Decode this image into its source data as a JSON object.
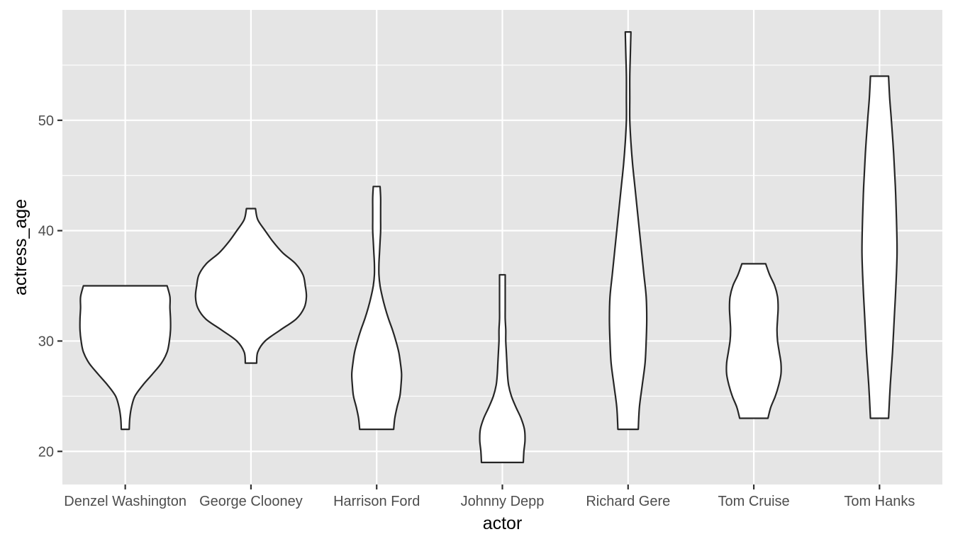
{
  "chart_data": {
    "type": "violin",
    "title": "",
    "xlabel": "actor",
    "ylabel": "actress_age",
    "ylim": [
      17,
      60
    ],
    "y_ticks": [
      20,
      30,
      40,
      50
    ],
    "y_tick_labels": [
      "20",
      "30",
      "40",
      "50"
    ],
    "grid": true,
    "legend": "none",
    "colors": {
      "panel_background": "#e5e5e5",
      "grid_line": "#ffffff",
      "violin_fill": "#ffffff",
      "violin_outline": "#262626",
      "tick_text": "#4d4d4d",
      "axis_title": "#000000"
    },
    "categories": [
      "Denzel Washington",
      "George Clooney",
      "Harrison Ford",
      "Johnny Depp",
      "Richard Gere",
      "Tom Cruise",
      "Tom Hanks"
    ],
    "series": [
      {
        "category": "Denzel Washington",
        "min": 22,
        "max": 35,
        "density": [
          [
            22,
            0.07
          ],
          [
            23,
            0.08
          ],
          [
            24,
            0.11
          ],
          [
            25,
            0.17
          ],
          [
            26,
            0.31
          ],
          [
            27,
            0.48
          ],
          [
            28,
            0.64
          ],
          [
            29,
            0.74
          ],
          [
            30,
            0.78
          ],
          [
            31,
            0.8
          ],
          [
            32,
            0.8
          ],
          [
            33,
            0.79
          ],
          [
            34,
            0.79
          ],
          [
            35,
            0.74
          ]
        ]
      },
      {
        "category": "George Clooney",
        "min": 28,
        "max": 42,
        "density": [
          [
            28,
            0.1
          ],
          [
            29,
            0.12
          ],
          [
            30,
            0.25
          ],
          [
            31,
            0.52
          ],
          [
            32,
            0.8
          ],
          [
            33,
            0.94
          ],
          [
            34,
            0.98
          ],
          [
            35,
            0.96
          ],
          [
            36,
            0.92
          ],
          [
            37,
            0.79
          ],
          [
            38,
            0.56
          ],
          [
            39,
            0.39
          ],
          [
            40,
            0.25
          ],
          [
            41,
            0.12
          ],
          [
            42,
            0.08
          ]
        ]
      },
      {
        "category": "Harrison Ford",
        "min": 22,
        "max": 44,
        "density": [
          [
            22,
            0.3
          ],
          [
            23,
            0.32
          ],
          [
            24,
            0.36
          ],
          [
            25,
            0.41
          ],
          [
            26,
            0.43
          ],
          [
            27,
            0.44
          ],
          [
            28,
            0.42
          ],
          [
            29,
            0.39
          ],
          [
            30,
            0.34
          ],
          [
            31,
            0.28
          ],
          [
            32,
            0.21
          ],
          [
            33,
            0.15
          ],
          [
            34,
            0.1
          ],
          [
            35,
            0.06
          ],
          [
            36,
            0.04
          ],
          [
            37,
            0.04
          ],
          [
            38,
            0.05
          ],
          [
            39,
            0.06
          ],
          [
            40,
            0.07
          ],
          [
            41,
            0.07
          ],
          [
            42,
            0.07
          ],
          [
            43,
            0.07
          ],
          [
            44,
            0.06
          ]
        ]
      },
      {
        "category": "Johnny Depp",
        "min": 19,
        "max": 36,
        "density": [
          [
            19,
            0.37
          ],
          [
            20,
            0.38
          ],
          [
            21,
            0.4
          ],
          [
            22,
            0.39
          ],
          [
            23,
            0.33
          ],
          [
            24,
            0.24
          ],
          [
            25,
            0.16
          ],
          [
            26,
            0.11
          ],
          [
            27,
            0.09
          ],
          [
            28,
            0.08
          ],
          [
            29,
            0.07
          ],
          [
            30,
            0.06
          ],
          [
            31,
            0.06
          ],
          [
            32,
            0.05
          ],
          [
            33,
            0.05
          ],
          [
            34,
            0.05
          ],
          [
            35,
            0.05
          ],
          [
            36,
            0.05
          ]
        ]
      },
      {
        "category": "Richard Gere",
        "min": 22,
        "max": 58,
        "density": [
          [
            22,
            0.18
          ],
          [
            24,
            0.2
          ],
          [
            26,
            0.25
          ],
          [
            28,
            0.3
          ],
          [
            30,
            0.32
          ],
          [
            32,
            0.33
          ],
          [
            34,
            0.32
          ],
          [
            36,
            0.28
          ],
          [
            38,
            0.24
          ],
          [
            40,
            0.2
          ],
          [
            42,
            0.16
          ],
          [
            44,
            0.12
          ],
          [
            46,
            0.08
          ],
          [
            48,
            0.05
          ],
          [
            50,
            0.03
          ],
          [
            52,
            0.03
          ],
          [
            54,
            0.03
          ],
          [
            56,
            0.04
          ],
          [
            58,
            0.05
          ]
        ]
      },
      {
        "category": "Tom Cruise",
        "min": 23,
        "max": 37,
        "density": [
          [
            23,
            0.25
          ],
          [
            24,
            0.3
          ],
          [
            25,
            0.38
          ],
          [
            26,
            0.44
          ],
          [
            27,
            0.48
          ],
          [
            28,
            0.48
          ],
          [
            29,
            0.45
          ],
          [
            30,
            0.42
          ],
          [
            31,
            0.41
          ],
          [
            32,
            0.42
          ],
          [
            33,
            0.43
          ],
          [
            34,
            0.42
          ],
          [
            35,
            0.37
          ],
          [
            36,
            0.28
          ],
          [
            37,
            0.21
          ]
        ]
      },
      {
        "category": "Tom Hanks",
        "min": 23,
        "max": 54,
        "density": [
          [
            23,
            0.16
          ],
          [
            26,
            0.19
          ],
          [
            29,
            0.23
          ],
          [
            32,
            0.26
          ],
          [
            35,
            0.29
          ],
          [
            38,
            0.31
          ],
          [
            41,
            0.3
          ],
          [
            44,
            0.28
          ],
          [
            47,
            0.25
          ],
          [
            50,
            0.21
          ],
          [
            52,
            0.18
          ],
          [
            54,
            0.16
          ]
        ]
      }
    ]
  }
}
